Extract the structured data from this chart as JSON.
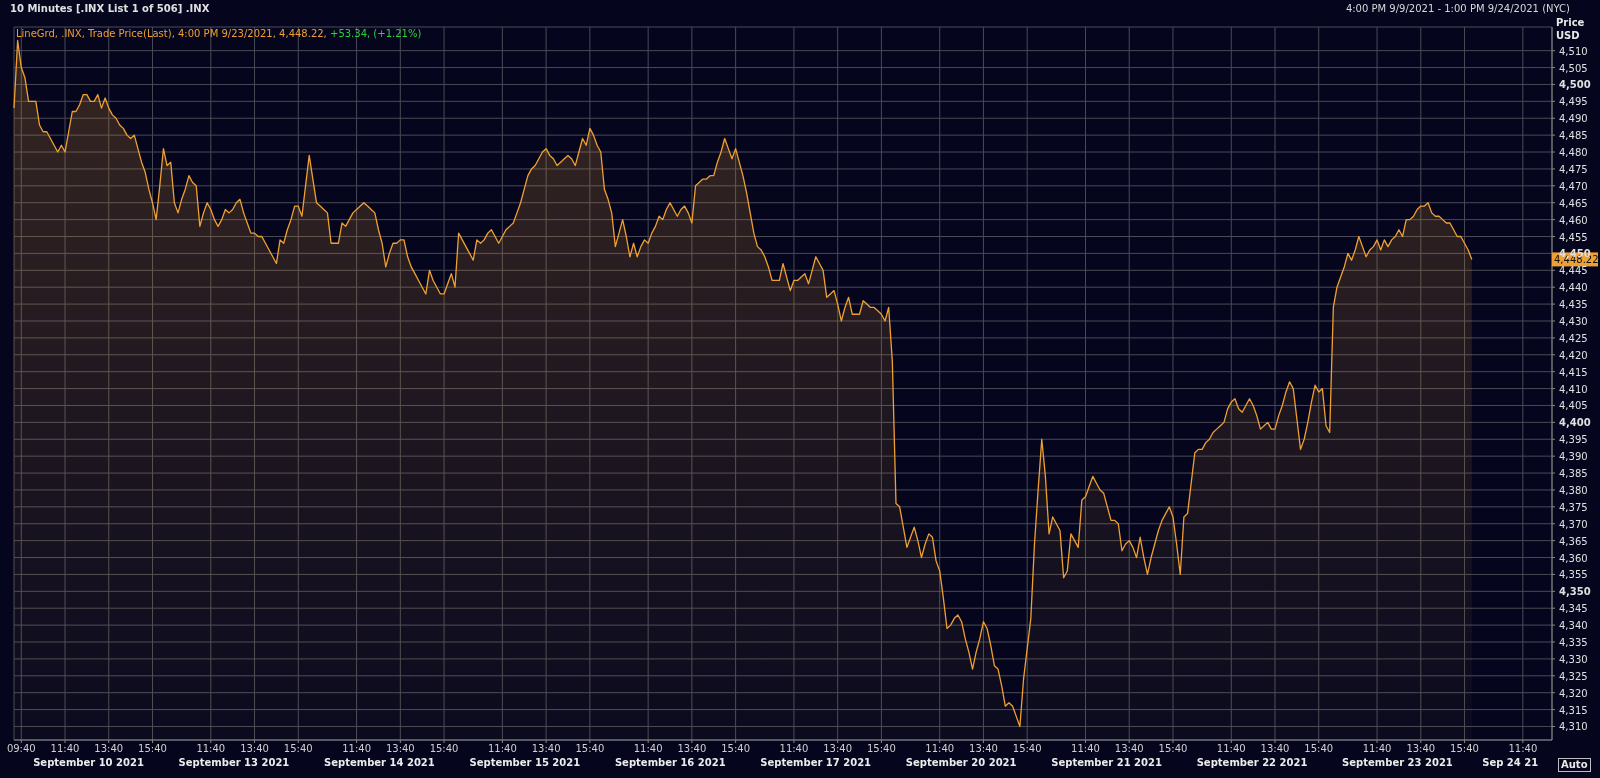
{
  "chart_data": {
    "type": "area",
    "title": "10 Minutes [.INX List 1 of 506] .INX",
    "subtitle": "4:00 PM 9/9/2021 - 1:00 PM 9/24/2021 (NYC)",
    "ylabel": "Price USD",
    "categories": [
      null,
      null,
      "09:40",
      null,
      null,
      null,
      null,
      null,
      null,
      null,
      null,
      null,
      null,
      null,
      "11:40",
      null,
      null,
      null,
      null,
      null,
      null,
      null,
      null,
      null,
      null,
      null,
      "13:40",
      null,
      null,
      null,
      null,
      null,
      null,
      null,
      null,
      null,
      null,
      null,
      "15:40",
      null,
      null,
      null,
      null,
      null,
      null,
      null,
      null,
      null,
      null,
      null,
      null,
      null,
      null,
      null,
      "11:40",
      null,
      null,
      null,
      null,
      null,
      null,
      null,
      null,
      null,
      null,
      null,
      "13:40",
      null,
      null,
      null,
      null,
      null,
      null,
      null,
      null,
      null,
      null,
      null,
      "15:40",
      null,
      null,
      null,
      null,
      null,
      null,
      null,
      null,
      null,
      null,
      null,
      null,
      null,
      null,
      null,
      "11:40",
      null,
      null,
      null,
      null,
      null,
      null,
      null,
      null,
      null,
      null,
      null,
      "13:40",
      null,
      null,
      null,
      null,
      null,
      null,
      null,
      null,
      null,
      null,
      null,
      "15:40",
      null,
      null,
      null,
      null,
      null,
      null,
      null,
      null,
      null,
      null,
      null,
      null,
      null,
      null,
      null,
      "11:40",
      null,
      null,
      null,
      null,
      null,
      null,
      null,
      null,
      null,
      null,
      null,
      "13:40",
      null,
      null,
      null,
      null,
      null,
      null,
      null,
      null,
      null,
      null,
      null,
      "15:40",
      null,
      null,
      null,
      null,
      null,
      null,
      null,
      null,
      null,
      null,
      null,
      null,
      null,
      null,
      null,
      "11:40",
      null,
      null,
      null,
      null,
      null,
      null,
      null,
      null,
      null,
      null,
      null,
      "13:40",
      null,
      null,
      null,
      null,
      null,
      null,
      null,
      null,
      null,
      null,
      null,
      "15:40",
      null,
      null,
      null,
      null,
      null,
      null,
      null,
      null,
      null,
      null,
      null,
      null,
      null,
      null,
      null,
      "11:40",
      null,
      null,
      null,
      null,
      null,
      null,
      null,
      null,
      null,
      null,
      null,
      "13:40",
      null,
      null,
      null,
      null,
      null,
      null,
      null,
      null,
      null,
      null,
      null,
      "15:40",
      null,
      null,
      null,
      null,
      null,
      null,
      null,
      null,
      null,
      null,
      null,
      null,
      null,
      null,
      null,
      "11:40",
      null,
      null,
      null,
      null,
      null,
      null,
      null,
      null,
      null,
      null,
      null,
      "13:40",
      null,
      null,
      null,
      null,
      null,
      null,
      null,
      null,
      null,
      null,
      null,
      "15:40",
      null,
      null,
      null,
      null,
      null,
      null,
      null,
      null,
      null,
      null,
      null,
      null,
      null,
      null,
      null,
      "11:40",
      null,
      null,
      null,
      null,
      null,
      null,
      null,
      null,
      null,
      null,
      null,
      "13:40",
      null,
      null,
      null,
      null,
      null,
      null,
      null,
      null,
      null,
      null,
      null,
      "15:40",
      null,
      null,
      null,
      null,
      null,
      null,
      null,
      null,
      null,
      null,
      null,
      null,
      null,
      null,
      null,
      "11:40",
      null,
      null,
      null,
      null,
      null,
      null,
      null,
      null,
      null,
      null,
      null,
      "13:40",
      null,
      null,
      null,
      null,
      null,
      null,
      null,
      null,
      null,
      null,
      null,
      "15:40",
      null,
      null,
      null,
      null,
      null,
      null,
      null,
      null,
      null,
      null,
      null,
      null,
      null,
      null,
      null,
      "11:40",
      null,
      null,
      null,
      null,
      null,
      null,
      null,
      null,
      null,
      null,
      null,
      "13:40",
      null,
      null,
      null,
      null,
      null,
      null,
      null,
      null,
      null,
      null,
      null,
      "15:40",
      null,
      null,
      null,
      null,
      null,
      null,
      null,
      null,
      null,
      null,
      null,
      null,
      null,
      null,
      null,
      "11:40",
      null,
      null,
      null,
      null,
      null,
      null,
      null,
      null
    ],
    "series": [
      {
        "name": "LineGrd, .INX, Trade Price(Last), 4:00 PM 9/23/2021, 4,448.22,",
        "color": "#f0a030",
        "values": [
          4493,
          4513,
          4505,
          4502,
          4495,
          4495,
          4495,
          4488,
          4486,
          4486,
          4484,
          4482,
          4480,
          4482,
          4480,
          4486,
          4492,
          4492,
          4494,
          4497,
          4497,
          4495,
          4495,
          4497,
          4493,
          4496,
          4493,
          4491,
          4490,
          4488,
          4487,
          4485,
          4484,
          4485,
          4481,
          4477,
          4474,
          4469,
          4465,
          4460,
          4470,
          4481,
          4476,
          4477,
          4465,
          4462,
          4466,
          4469,
          4473,
          4471,
          4470,
          4458,
          4462,
          4465,
          4463,
          4460,
          4458,
          4460,
          4463,
          4462,
          4463,
          4465,
          4466,
          4462,
          4459,
          4456,
          4456,
          4455,
          4455,
          4453,
          4451,
          4449,
          4447,
          4454,
          4453,
          4457,
          4460,
          4464,
          4464,
          4461,
          4470,
          4479,
          4472,
          4465,
          4464,
          4463,
          4462,
          4453,
          4453,
          4453,
          4459,
          4458,
          4460,
          4462,
          4463,
          4464,
          4465,
          4464,
          4463,
          4462,
          4457,
          4453,
          4446,
          4450,
          4453,
          4453,
          4454,
          4454,
          4449,
          4446,
          4444,
          4442,
          4440,
          4438,
          4445,
          4442,
          4440,
          4438,
          4438,
          4441,
          4444,
          4440,
          4456,
          4454,
          4452,
          4450,
          4448,
          4454,
          4453,
          4454,
          4456,
          4457,
          4455,
          4453,
          4455,
          4457,
          4458,
          4459,
          4462,
          4465,
          4469,
          4473,
          4475,
          4476,
          4478,
          4480,
          4481,
          4479,
          4478,
          4476,
          4477,
          4478,
          4479,
          4478,
          4476,
          4480,
          4484,
          4482,
          4487,
          4485,
          4482,
          4480,
          4469,
          4466,
          4462,
          4452,
          4456,
          4460,
          4455,
          4449,
          4453,
          4449,
          4452,
          4454,
          4453,
          4456,
          4458,
          4461,
          4460,
          4463,
          4465,
          4463,
          4461,
          4463,
          4464,
          4462,
          4459,
          4470,
          4471,
          4472,
          4472,
          4473,
          4473,
          4477,
          4480,
          4484,
          4481,
          4478,
          4481,
          4477,
          4473,
          4468,
          4462,
          4456,
          4452,
          4451,
          4449,
          4446,
          4442,
          4442,
          4442,
          4447,
          4443,
          4439,
          4442,
          4442,
          4443,
          4444,
          4441,
          4445,
          4449,
          4447,
          4445,
          4437,
          4438,
          4439,
          4435,
          4430,
          4434,
          4437,
          4432,
          4432,
          4432,
          4436,
          4435,
          4434,
          4434,
          4433,
          4432,
          4430,
          4434,
          4418,
          4376,
          4375,
          4369,
          4363,
          4366,
          4369,
          4365,
          4360,
          4364,
          4367,
          4366,
          4359,
          4356,
          4348,
          4339,
          4340,
          4342,
          4343,
          4341,
          4336,
          4332,
          4327,
          4332,
          4336,
          4341,
          4339,
          4334,
          4328,
          4327,
          4322,
          4316,
          4317,
          4316,
          4313,
          4310,
          4324,
          4333,
          4342,
          4364,
          4380,
          4395,
          4384,
          4367,
          4372,
          4370,
          4368,
          4354,
          4356,
          4367,
          4365,
          4363,
          4377,
          4378,
          4381,
          4384,
          4382,
          4380,
          4379,
          4375,
          4371,
          4371,
          4370,
          4362,
          4364,
          4365,
          4363,
          4360,
          4366,
          4360,
          4355,
          4360,
          4364,
          4368,
          4371,
          4373,
          4375,
          4372,
          4364,
          4355,
          4372,
          4373,
          4382,
          4391,
          4392,
          4392,
          4394,
          4395,
          4397,
          4398,
          4399,
          4400,
          4404,
          4406,
          4407,
          4404,
          4403,
          4405,
          4407,
          4405,
          4402,
          4398,
          4399,
          4400,
          4398,
          4398,
          4402,
          4405,
          4409,
          4412,
          4410,
          4401,
          4392,
          4395,
          4400,
          4406,
          4411,
          4409,
          4410,
          4399,
          4397,
          4434,
          4440,
          4443,
          4446,
          4450,
          4448,
          4451,
          4455,
          4452,
          4449,
          4451,
          4452,
          4454,
          4451,
          4454,
          4452,
          4454,
          4455,
          4457,
          4455,
          4460,
          4460,
          4461,
          4463,
          4464,
          4464,
          4465,
          4462,
          4461,
          4461,
          4460,
          4459,
          4459,
          4457,
          4455,
          4455,
          4453,
          4451,
          4448.22,
          null,
          null,
          null,
          null,
          null,
          null,
          null,
          null,
          null,
          null,
          null,
          null,
          null,
          null,
          null,
          null,
          null,
          null,
          null,
          null,
          null,
          null
        ]
      }
    ],
    "ylim": [
      4306,
      4517
    ],
    "yticks": [
      {
        "value": 4310,
        "label": "4,310"
      },
      {
        "value": 4315,
        "label": "4,315"
      },
      {
        "value": 4320,
        "label": "4,320"
      },
      {
        "value": 4325,
        "label": "4,325"
      },
      {
        "value": 4330,
        "label": "4,330"
      },
      {
        "value": 4335,
        "label": "4,335"
      },
      {
        "value": 4340,
        "label": "4,340"
      },
      {
        "value": 4345,
        "label": "4,345"
      },
      {
        "value": 4350,
        "label": "4,350"
      },
      {
        "value": 4355,
        "label": "4,355"
      },
      {
        "value": 4360,
        "label": "4,360"
      },
      {
        "value": 4365,
        "label": "4,365"
      },
      {
        "value": 4370,
        "label": "4,370"
      },
      {
        "value": 4375,
        "label": "4,375"
      },
      {
        "value": 4380,
        "label": "4,380"
      },
      {
        "value": 4385,
        "label": "4,385"
      },
      {
        "value": 4390,
        "label": "4,390"
      },
      {
        "value": 4395,
        "label": "4,395"
      },
      {
        "value": 4400,
        "label": "4,400"
      },
      {
        "value": 4405,
        "label": "4,405"
      },
      {
        "value": 4410,
        "label": "4,410"
      },
      {
        "value": 4415,
        "label": "4,415"
      },
      {
        "value": 4420,
        "label": "4,420"
      },
      {
        "value": 4425,
        "label": "4,425"
      },
      {
        "value": 4430,
        "label": "4,430"
      },
      {
        "value": 4435,
        "label": "4,435"
      },
      {
        "value": 4440,
        "label": "4,440"
      },
      {
        "value": 4445,
        "label": "4,445"
      },
      {
        "value": 4450,
        "label": "4,450"
      },
      {
        "value": 4455,
        "label": "4,455"
      },
      {
        "value": 4460,
        "label": "4,460"
      },
      {
        "value": 4465,
        "label": "4,465"
      },
      {
        "value": 4470,
        "label": "4,470"
      },
      {
        "value": 4475,
        "label": "4,475"
      },
      {
        "value": 4480,
        "label": "4,480"
      },
      {
        "value": 4485,
        "label": "4,485"
      },
      {
        "value": 4490,
        "label": "4,490"
      },
      {
        "value": 4495,
        "label": "4,495"
      },
      {
        "value": 4500,
        "label": "4,500"
      },
      {
        "value": 4505,
        "label": "4,505"
      },
      {
        "value": 4510,
        "label": "4,510"
      }
    ],
    "grid": true,
    "legend": "top left",
    "annotations": [
      "+53.34, (+1.21%)",
      "Auto",
      "4,448.22",
      "September 10 2021",
      "September 13 2021",
      "September 14 2021",
      "September 15 2021",
      "September 16 2021",
      "September 17 2021",
      "September 20 2021",
      "September 21 2021",
      "September 22 2021",
      "September 23 2021",
      "Sep 24 21"
    ]
  }
}
